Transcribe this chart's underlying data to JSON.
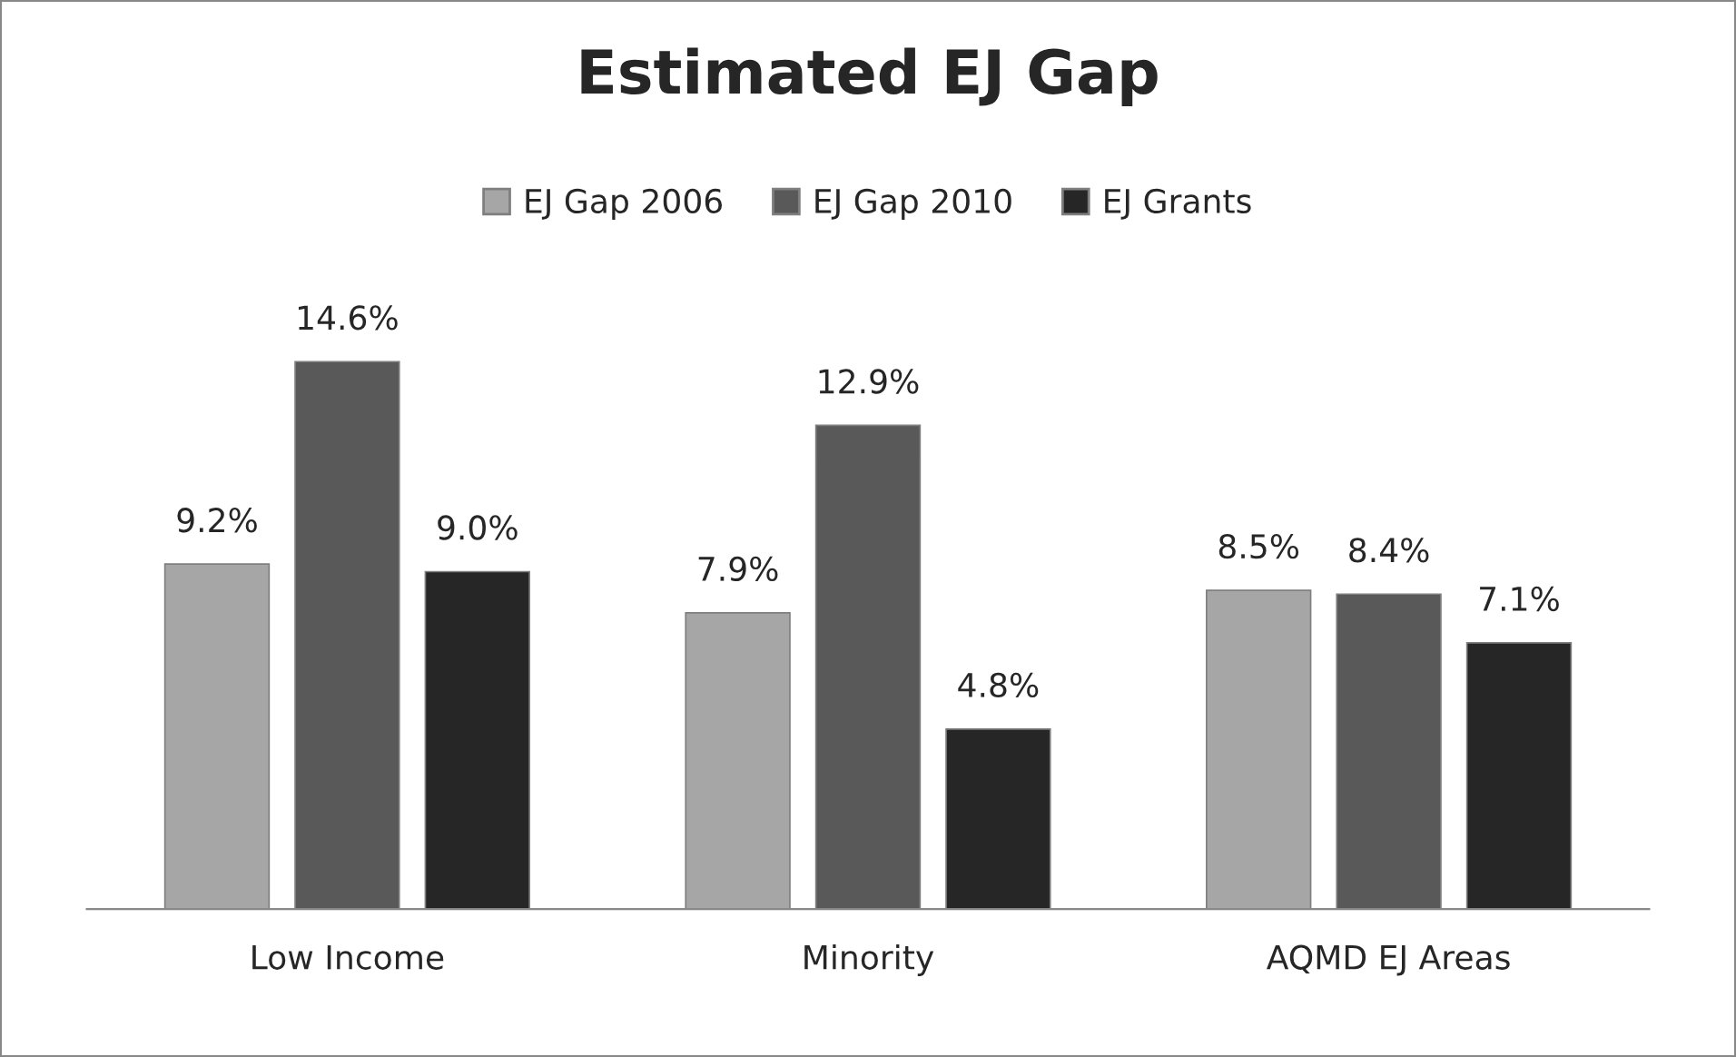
{
  "chart_data": {
    "type": "bar",
    "title": "Estimated EJ Gap",
    "categories": [
      "Low Income",
      "Minority",
      "AQMD EJ Areas"
    ],
    "series": [
      {
        "name": "EJ Gap 2006",
        "color": "#a6a6a6",
        "values": [
          9.2,
          7.9,
          8.5
        ],
        "value_labels": [
          "9.2%",
          "7.9%",
          "8.5%"
        ]
      },
      {
        "name": "EJ Gap 2010",
        "color": "#595959",
        "values": [
          14.6,
          12.9,
          8.4
        ],
        "value_labels": [
          "14.6%",
          "12.9%",
          "8.4%"
        ]
      },
      {
        "name": "EJ Grants",
        "color": "#262626",
        "values": [
          9.0,
          4.8,
          7.1
        ],
        "value_labels": [
          "9.0%",
          "4.8%",
          "7.1%"
        ]
      }
    ],
    "legend": "top",
    "grid": false
  }
}
